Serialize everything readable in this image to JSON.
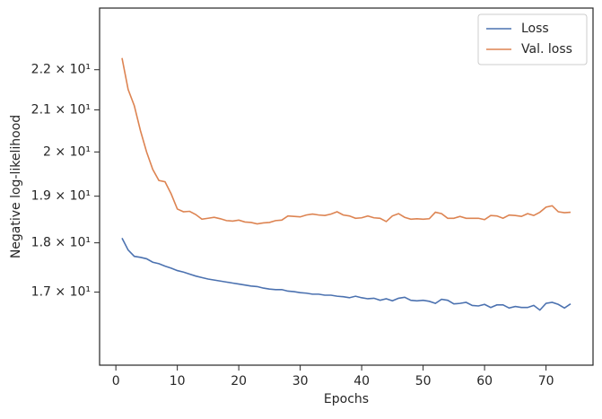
{
  "chart_data": {
    "type": "line",
    "xlabel": "Epochs",
    "ylabel": "Negative log-likelihood",
    "x": [
      1,
      2,
      3,
      4,
      5,
      6,
      7,
      8,
      9,
      10,
      11,
      12,
      13,
      14,
      15,
      16,
      17,
      18,
      19,
      20,
      21,
      22,
      23,
      24,
      25,
      26,
      27,
      28,
      29,
      30,
      31,
      32,
      33,
      34,
      35,
      36,
      37,
      38,
      39,
      40,
      41,
      42,
      43,
      44,
      45,
      46,
      47,
      48,
      49,
      50,
      51,
      52,
      53,
      54,
      55,
      56,
      57,
      58,
      59,
      60,
      61,
      62,
      63,
      64,
      65,
      66,
      67,
      68,
      69,
      70,
      71,
      72,
      73,
      74
    ],
    "series": [
      {
        "name": "Loss",
        "color": "#4c72b0",
        "values": [
          18.1,
          17.85,
          17.72,
          17.7,
          17.67,
          17.6,
          17.57,
          17.52,
          17.48,
          17.43,
          17.4,
          17.36,
          17.32,
          17.29,
          17.26,
          17.24,
          17.22,
          17.2,
          17.18,
          17.16,
          17.14,
          17.12,
          17.11,
          17.08,
          17.06,
          17.05,
          17.05,
          17.02,
          17.01,
          16.99,
          16.98,
          16.96,
          16.96,
          16.94,
          16.94,
          16.92,
          16.91,
          16.89,
          16.92,
          16.89,
          16.87,
          16.88,
          16.84,
          16.87,
          16.83,
          16.88,
          16.9,
          16.84,
          16.83,
          16.84,
          16.82,
          16.78,
          16.86,
          16.84,
          16.77,
          16.78,
          16.8,
          16.74,
          16.73,
          16.76,
          16.7,
          16.75,
          16.75,
          16.69,
          16.72,
          16.7,
          16.7,
          16.74,
          16.65,
          16.78,
          16.8,
          16.76,
          16.69,
          16.77
        ]
      },
      {
        "name": "Val. loss",
        "color": "#dd8452",
        "values": [
          22.3,
          21.5,
          21.1,
          20.5,
          20.0,
          19.6,
          19.35,
          19.32,
          19.05,
          18.72,
          18.66,
          18.67,
          18.6,
          18.5,
          18.52,
          18.54,
          18.51,
          18.47,
          18.46,
          18.48,
          18.44,
          18.43,
          18.4,
          18.42,
          18.43,
          18.47,
          18.48,
          18.57,
          18.56,
          18.55,
          18.59,
          18.61,
          18.59,
          18.58,
          18.61,
          18.66,
          18.59,
          18.57,
          18.52,
          18.53,
          18.57,
          18.53,
          18.52,
          18.45,
          18.57,
          18.62,
          18.54,
          18.5,
          18.51,
          18.5,
          18.51,
          18.65,
          18.62,
          18.52,
          18.52,
          18.56,
          18.52,
          18.52,
          18.52,
          18.49,
          18.58,
          18.57,
          18.52,
          18.59,
          18.58,
          18.56,
          18.62,
          18.58,
          18.65,
          18.76,
          18.79,
          18.66,
          18.64,
          18.65
        ]
      }
    ],
    "xlim": [
      -2.65,
      77.65
    ],
    "xticks": [
      0,
      10,
      20,
      30,
      40,
      50,
      60,
      70
    ],
    "ylim": [
      15.62,
      23.63
    ],
    "y_scale": "log",
    "yticks": [
      {
        "value": 17,
        "label": "1.7 × 10¹"
      },
      {
        "value": 18,
        "label": "1.8 × 10¹"
      },
      {
        "value": 19,
        "label": "1.9 × 10¹"
      },
      {
        "value": 20,
        "label": "2 × 10¹"
      },
      {
        "value": 21,
        "label": "2.1 × 10¹"
      },
      {
        "value": 22,
        "label": "2.2 × 10¹"
      }
    ],
    "grid": false,
    "legend": "upper right"
  }
}
